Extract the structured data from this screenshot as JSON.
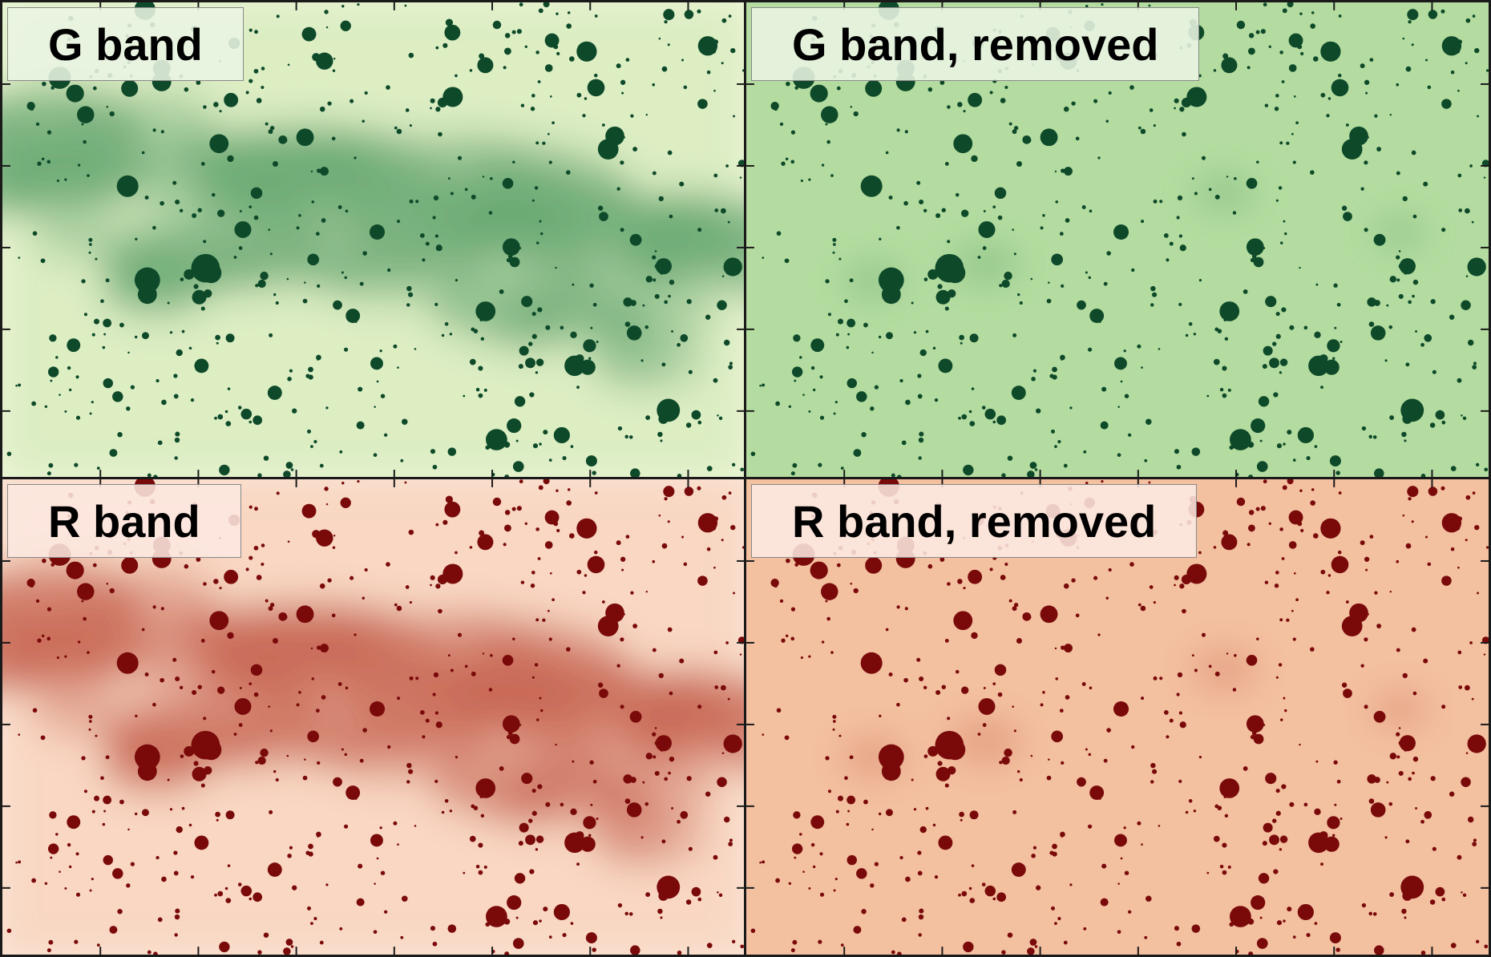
{
  "panels": [
    {
      "id": "g-band",
      "label": "G band",
      "band": "green",
      "filament": true
    },
    {
      "id": "g-band-removed",
      "label": "G band, removed",
      "band": "green",
      "filament": false
    },
    {
      "id": "r-band",
      "label": "R band",
      "band": "red",
      "filament": true
    },
    {
      "id": "r-band-removed",
      "label": "R band, removed",
      "band": "red",
      "filament": false
    }
  ],
  "colors": {
    "green_bg_light": "#eef6d8",
    "green_bg": "#b4dca0",
    "green_cloud": "#3f8f52",
    "green_star": "#0e4a2a",
    "red_bg_light": "#fbe6d8",
    "red_bg": "#f3c0a0",
    "red_cloud": "#b8402a",
    "red_star": "#7a0a0a",
    "frame": "#1a1a1a"
  }
}
